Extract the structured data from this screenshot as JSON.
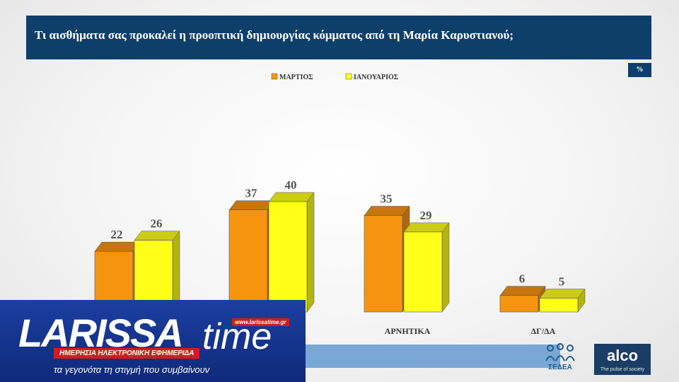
{
  "header": {
    "title": "Τι αισθήματα σας προκαλεί η προοπτική δημιουργίας κόμματος από τη Μαρία Καρυστιανού;"
  },
  "unit_badge": "%",
  "chart_data": {
    "type": "bar",
    "title": "",
    "xlabel": "",
    "ylabel": "",
    "categories": [
      "",
      "",
      "ΑΡΝΗΤΙΚΑ",
      "ΔΓ/ΔΑ"
    ],
    "series": [
      {
        "name": "ΜΑΡΤΙΟΣ",
        "color": "#f7940f",
        "values": [
          22,
          37,
          35,
          6
        ]
      },
      {
        "name": "ΙΑΝΟΥΑΡΙΟΣ",
        "color": "#ffff1a",
        "values": [
          26,
          40,
          29,
          5
        ]
      }
    ],
    "ylim": [
      0,
      40
    ],
    "grid": false,
    "legend": "top-center",
    "style": "3d-bar"
  },
  "logos": {
    "sedea": "ΣΕΔΕΑ",
    "alco": "alco",
    "alco_tagline": "The pulse of society",
    "larissa_word": "LARISSA",
    "larissa_time": "time",
    "larissa_url": "www.larissatime.gr",
    "larissa_sub": "ΗΜΕΡΗΣΙΑ ΗΛΕΚΤΡΟΝΙΚΗ ΕΦΗΜΕΡΙΔΑ",
    "larissa_tagline": "τα γεγονότα τη στιγμή που συμβαίνουν"
  }
}
